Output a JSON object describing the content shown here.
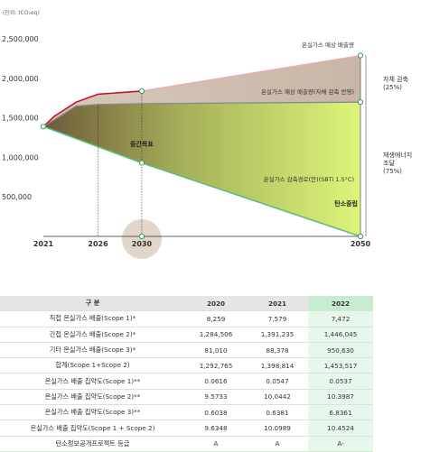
{
  "chart_data": {
    "type": "area",
    "unit_label": "(단위: tCO₂eq)",
    "y_ticks": [
      "2,500,000",
      "2,000,000",
      "1,500,000",
      "1,000,000",
      "500,000"
    ],
    "y_tick_values": [
      2500000,
      2000000,
      1500000,
      1000000,
      500000
    ],
    "x_ticks": [
      "2021",
      "2026",
      "2030",
      "2050"
    ],
    "x_tick_values": [
      2021,
      2026,
      2030,
      2050
    ],
    "ylim": [
      0,
      2650000
    ],
    "xlim": [
      2021,
      2050
    ],
    "series": [
      {
        "name": "온실가스 예상 배출량",
        "x": [
          2021,
          2022,
          2024,
          2026,
          2030,
          2050
        ],
        "y": [
          1390000,
          1520000,
          1700000,
          1800000,
          1840000,
          2290000
        ]
      },
      {
        "name": "온실가스 예상 배출량(자체 감축 반영)",
        "x": [
          2021,
          2024,
          2026,
          2030,
          2050
        ],
        "y": [
          1390000,
          1650000,
          1670000,
          1680000,
          1700000
        ]
      },
      {
        "name": "온실가스 감축경로(안)(SBTi 1.5°C)",
        "x": [
          2021,
          2030,
          2050
        ],
        "y": [
          1390000,
          930000,
          0
        ]
      }
    ],
    "annotations": {
      "interim": "중간목표",
      "net_zero": "탄소중립",
      "self_reduction": [
        "자체 감축",
        "(25%)"
      ],
      "renewable": [
        "재생에너지",
        "조달",
        "(75%)"
      ]
    },
    "colors": {
      "expected": "#f4a7b6",
      "actual": "#c8102e",
      "self": "#8a8a8a",
      "path": "#5bbf7a",
      "top_fill": "#c9b9a8",
      "green_light": "#d9f27a",
      "green_dark": "#7a6a3a",
      "highlight_circle": "#d8c8b8"
    }
  },
  "table": {
    "headers": [
      "구 분",
      "2020",
      "2021",
      "2022"
    ],
    "rows": [
      [
        "직접 온실가스 배출(Scope 1)*",
        "8,259",
        "7,579",
        "7,472"
      ],
      [
        "간접 온실가스 배출(Scope 2)*",
        "1,284,506",
        "1,391,235",
        "1,446,045"
      ],
      [
        "기타 온실가스 배출(Scope 3)*",
        "81,010",
        "88,378",
        "950,630"
      ],
      [
        "합계(Scope 1+Scope 2)",
        "1,292,765",
        "1,398,814",
        "1,453,517"
      ],
      [
        "온실가스 배출 집약도(Scope 1)**",
        "0.0616",
        "0.0547",
        "0.0537"
      ],
      [
        "온실가스 배출 집약도(Scope 2)**",
        "9.5733",
        "10.0442",
        "10.3987"
      ],
      [
        "온실가스 배출 집약도(Scope 3)**",
        "0.6038",
        "0.6381",
        "6.8361"
      ],
      [
        "온실가스 배출 집약도(Scope 1 + Scope 2)",
        "9.6348",
        "10.0989",
        "10.4524"
      ],
      [
        "탄소정보공개프로젝트 등급",
        "A",
        "A",
        "A-"
      ]
    ]
  }
}
